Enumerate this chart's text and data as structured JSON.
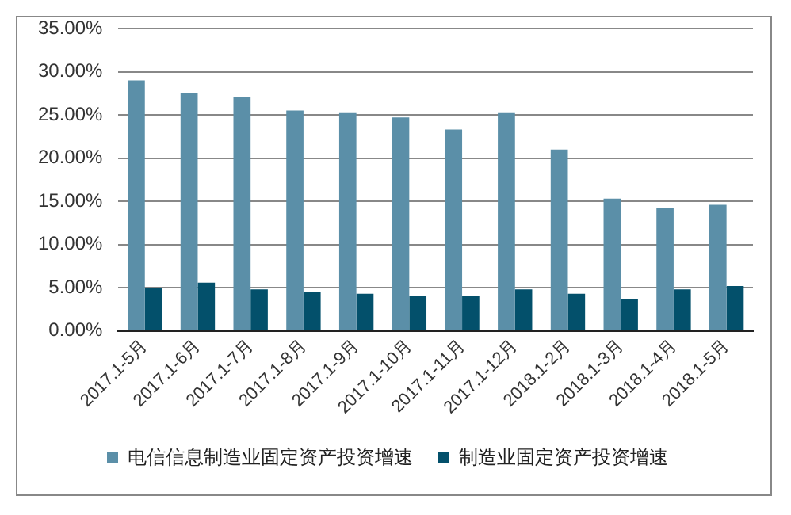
{
  "chart_data": {
    "type": "bar",
    "categories": [
      "2017.1-5月",
      "2017.1-6月",
      "2017.1-7月",
      "2017.1-8月",
      "2017.1-9月",
      "2017.1-10月",
      "2017.1-11月",
      "2017.1-12月",
      "2018.1-2月",
      "2018.1-3月",
      "2018.1-4月",
      "2018.1-5月"
    ],
    "series": [
      {
        "name": "电信信息制造业固定资产投资增速",
        "color": "#5b8fa8",
        "values": [
          29.0,
          27.5,
          27.1,
          25.5,
          25.3,
          24.7,
          23.3,
          25.3,
          21.0,
          15.3,
          14.2,
          14.6
        ]
      },
      {
        "name": "制造业固定资产投资增速",
        "color": "#03506b",
        "values": [
          5.0,
          5.6,
          4.8,
          4.5,
          4.3,
          4.1,
          4.1,
          4.8,
          4.3,
          3.7,
          4.8,
          5.2
        ]
      }
    ],
    "ylim": [
      0,
      35
    ],
    "yticks": [
      {
        "value": 0,
        "label": "0.00%"
      },
      {
        "value": 5,
        "label": "5.00%"
      },
      {
        "value": 10,
        "label": "10.00%"
      },
      {
        "value": 15,
        "label": "15.00%"
      },
      {
        "value": 20,
        "label": "20.00%"
      },
      {
        "value": 25,
        "label": "25.00%"
      },
      {
        "value": 30,
        "label": "30.00%"
      },
      {
        "value": 35,
        "label": "35.00%"
      }
    ],
    "grid": "y",
    "legend": "bottom"
  }
}
